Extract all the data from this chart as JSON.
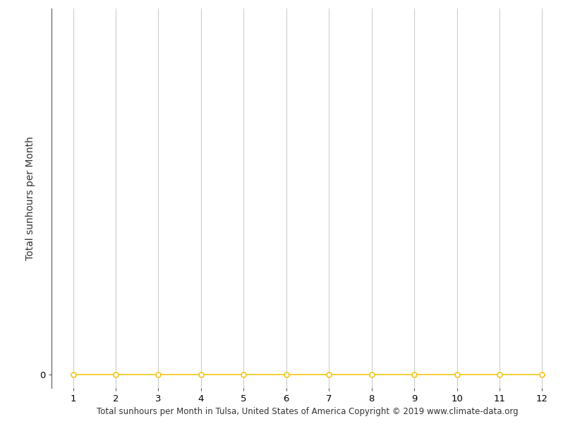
{
  "x_values": [
    1,
    2,
    3,
    4,
    5,
    6,
    7,
    8,
    9,
    10,
    11,
    12
  ],
  "y_values": [
    0,
    0,
    0,
    0,
    0,
    0,
    0,
    0,
    0,
    0,
    0,
    0
  ],
  "line_color": "#F5C518",
  "marker_color": "#F5C518",
  "marker_facecolor": "white",
  "marker_style": "o",
  "marker_size": 5,
  "line_width": 1.2,
  "xlabel": "Total sunhours per Month in Tulsa, United States of America Copyright © 2019 www.climate-data.org",
  "ylabel": "Total sunhours per Month",
  "xlim": [
    0.5,
    12.5
  ],
  "ylim": [
    -20,
    560
  ],
  "xticks": [
    1,
    2,
    3,
    4,
    5,
    6,
    7,
    8,
    9,
    10,
    11,
    12
  ],
  "yticks": [
    0
  ],
  "background_color": "#ffffff",
  "grid_color": "#cccccc",
  "xlabel_fontsize": 8.5,
  "ylabel_fontsize": 10,
  "tick_fontsize": 9.5
}
